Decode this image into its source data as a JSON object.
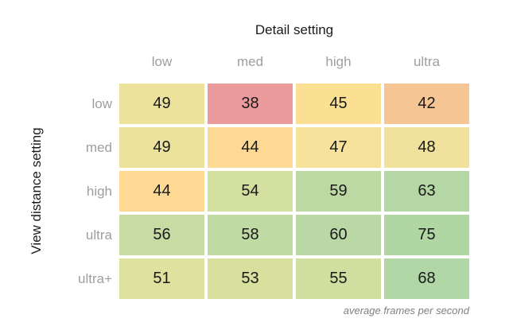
{
  "colors": {
    "background": "#ffffff",
    "title_text": "#1a1a1a",
    "tick_text": "#9e9e9e",
    "cell_text": "#1a1a1a",
    "caption_text": "#7f7f7f",
    "min_value_color": "#ec9b9d",
    "mid_value_color": "#ece29b",
    "max_value_color": "#b0d6a4"
  },
  "chart_data": {
    "type": "heatmap",
    "title": "Detail setting",
    "ylabel": "View distance setting",
    "caption": "average frames per second",
    "x_categories": [
      "low",
      "med",
      "high",
      "ultra"
    ],
    "y_categories": [
      "low",
      "med",
      "high",
      "ultra",
      "ultra+"
    ],
    "values": [
      [
        49,
        38,
        45,
        42
      ],
      [
        49,
        44,
        47,
        48
      ],
      [
        44,
        54,
        59,
        63
      ],
      [
        56,
        58,
        60,
        75
      ],
      [
        51,
        53,
        55,
        68
      ]
    ],
    "cell_colors": [
      [
        "#ece29b",
        "#ec9b9d",
        "#fbdf92",
        "#f5c594"
      ],
      [
        "#ece29b",
        "#fdd994",
        "#f6e29b",
        "#f0e19c"
      ],
      [
        "#fdd994",
        "#d2df9e",
        "#bcd9a4",
        "#b4d7a5"
      ],
      [
        "#c6dca3",
        "#c0daa4",
        "#bad8a5",
        "#b0d6a4"
      ],
      [
        "#dfe19e",
        "#d8e09e",
        "#d0df9f",
        "#b2d7a7"
      ]
    ],
    "value_range": [
      38,
      75
    ],
    "grid_gap_color": "#ffffff",
    "legend": "none"
  }
}
